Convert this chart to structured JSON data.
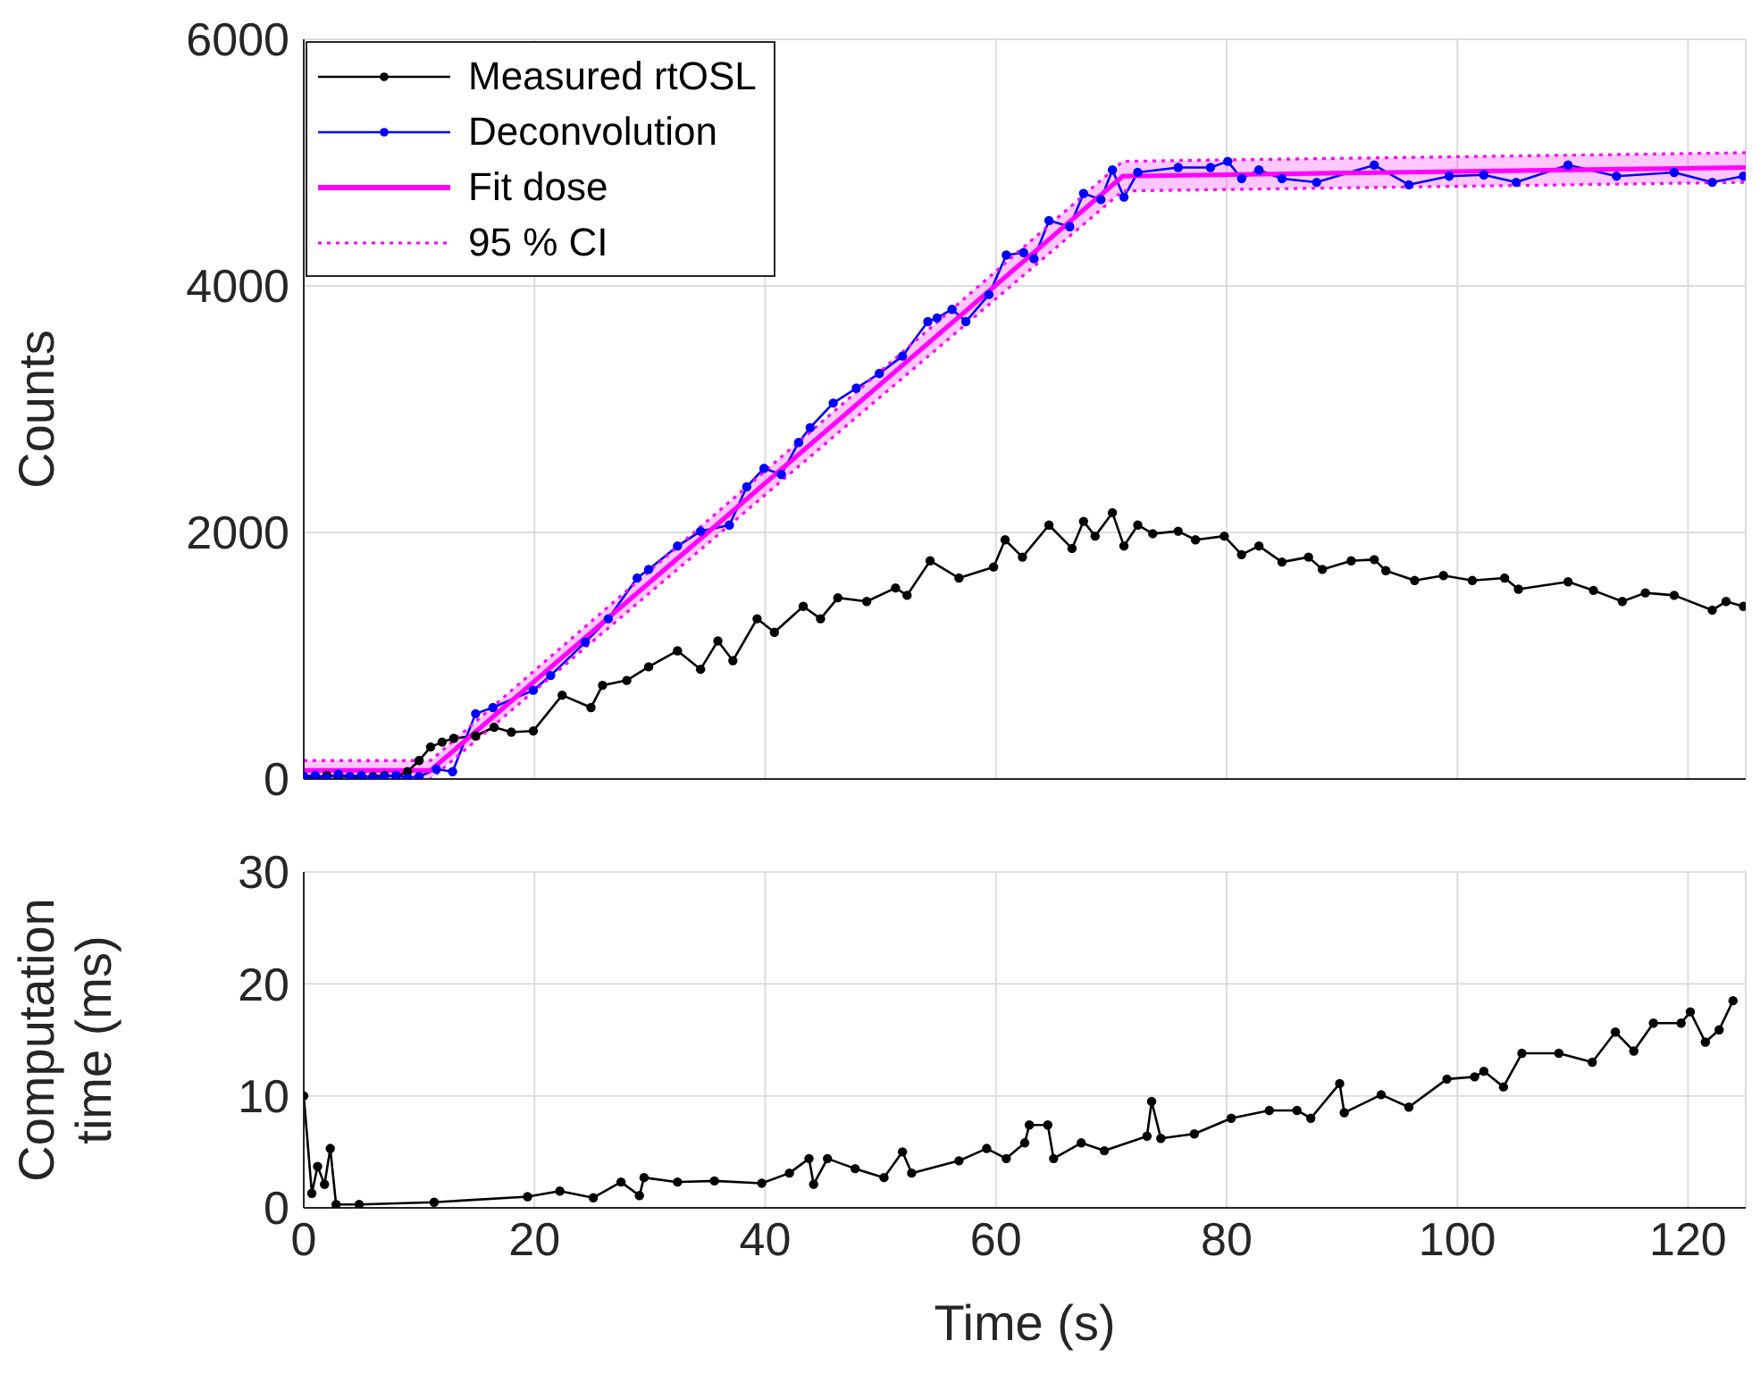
{
  "chart_data": [
    {
      "type": "line",
      "ylabel": "Counts",
      "xlim": [
        0,
        125
      ],
      "xticks": [
        0,
        20,
        40,
        60,
        80,
        100,
        120
      ],
      "ylim": [
        0,
        6000
      ],
      "yticks": [
        0,
        2000,
        4000,
        6000
      ],
      "tick_labels": "y",
      "grid": true,
      "legend": "top left",
      "marker": "circle",
      "line_style": "solid",
      "series": [
        {
          "name": "Measured rtOSL",
          "color": "#000000",
          "x": [
            0,
            1,
            2,
            3,
            4,
            5,
            6,
            7,
            8,
            9,
            10,
            11,
            12,
            13,
            14.9,
            16.5,
            18,
            19.9,
            22.4,
            24.9,
            25.9,
            28,
            29.9,
            32.4,
            34.4,
            35.9,
            37.2,
            39.3,
            40.8,
            43.3,
            44.8,
            46.3,
            48.8,
            51.3,
            52.3,
            54.3,
            56.8,
            59.8,
            60.8,
            62.3,
            64.6,
            66.6,
            67.6,
            68.6,
            70.1,
            71.1,
            72.3,
            73.6,
            75.8,
            77.3,
            79.8,
            81.3,
            82.8,
            84.8,
            87.1,
            88.3,
            90.8,
            92.8,
            93.8,
            96.3,
            98.8,
            101.3,
            104.1,
            105.3,
            109.6,
            111.8,
            114.3,
            116.3,
            118.8,
            122.1,
            123.3,
            124.8
          ],
          "values": [
            20,
            10,
            30,
            20,
            20,
            10,
            20,
            30,
            20,
            60,
            150,
            260,
            300,
            330,
            350,
            420,
            380,
            390,
            680,
            580,
            760,
            800,
            910,
            1040,
            890,
            1120,
            960,
            1300,
            1190,
            1400,
            1300,
            1470,
            1440,
            1550,
            1490,
            1770,
            1630,
            1720,
            1940,
            1800,
            2060,
            1870,
            2090,
            1970,
            2160,
            1890,
            2060,
            1990,
            2010,
            1940,
            1970,
            1820,
            1890,
            1760,
            1800,
            1700,
            1770,
            1780,
            1690,
            1610,
            1650,
            1610,
            1630,
            1540,
            1600,
            1530,
            1440,
            1510,
            1490,
            1370,
            1440,
            1400
          ]
        },
        {
          "name": "Deconvolution",
          "color": "#0000ff",
          "x": [
            0,
            1,
            2,
            3,
            4,
            5,
            6,
            7,
            8,
            9,
            10,
            11.5,
            12.9,
            14.9,
            16.4,
            19.9,
            21.4,
            24.4,
            26.4,
            28.9,
            29.9,
            32.4,
            34.4,
            36.9,
            38.4,
            39.9,
            41.4,
            42.9,
            43.9,
            45.9,
            47.9,
            49.9,
            51.9,
            54.1,
            54.9,
            56.2,
            57.4,
            59.4,
            60.9,
            62.4,
            63.3,
            64.6,
            66.4,
            67.6,
            69.1,
            70.1,
            71.1,
            72.3,
            75.8,
            78.6,
            80.1,
            81.3,
            82.8,
            84.8,
            87.8,
            92.8,
            95.8,
            99.3,
            102.3,
            105.1,
            109.6,
            113.8,
            118.8,
            122.1,
            124.8
          ],
          "values": [
            20,
            30,
            10,
            40,
            20,
            30,
            10,
            20,
            30,
            10,
            20,
            80,
            60,
            530,
            580,
            720,
            840,
            1110,
            1300,
            1630,
            1700,
            1890,
            2010,
            2060,
            2370,
            2520,
            2470,
            2730,
            2850,
            3050,
            3170,
            3290,
            3430,
            3710,
            3740,
            3810,
            3710,
            3930,
            4250,
            4270,
            4220,
            4530,
            4480,
            4750,
            4700,
            4940,
            4720,
            4920,
            4960,
            4960,
            5010,
            4870,
            4940,
            4870,
            4840,
            4980,
            4820,
            4890,
            4900,
            4840,
            4980,
            4890,
            4920,
            4840,
            4890
          ]
        },
        {
          "name": "Fit dose",
          "color": "#ff00ff",
          "marker": "none",
          "x": [
            0,
            11,
            71,
            125
          ],
          "values": [
            70,
            70,
            4890,
            4960
          ],
          "lower": [
            0,
            0,
            4770,
            4840
          ],
          "upper": [
            150,
            150,
            5010,
            5080
          ]
        },
        {
          "name": "95 % CI",
          "color": "#ff00ff",
          "marker": "none",
          "line_style": "dotted",
          "x": [
            0,
            11,
            71,
            125
          ],
          "values": [
            150,
            150,
            5010,
            5080
          ]
        },
        {
          "color": "#ff00ff",
          "marker": "none",
          "line_style": "dotted",
          "x": [
            0,
            11,
            71,
            125
          ],
          "values": [
            0,
            0,
            4770,
            4840
          ]
        }
      ]
    },
    {
      "type": "line",
      "xlabel": "Time (s)",
      "ylabel": "Computation time (ms)",
      "xlim": [
        0,
        125
      ],
      "xticks": [
        0,
        20,
        40,
        60,
        80,
        100,
        120
      ],
      "ylim": [
        0,
        30
      ],
      "yticks": [
        0,
        10,
        20,
        30
      ],
      "grid": true,
      "marker": "circle",
      "line_style": "solid",
      "series": [
        {
          "color": "#000000",
          "x": [
            0,
            0.7,
            1.2,
            1.8,
            2.3,
            2.8,
            4.8,
            11.3,
            19.4,
            22.2,
            25.1,
            27.5,
            29.1,
            29.5,
            32.4,
            35.6,
            39.7,
            42.1,
            43.8,
            44.2,
            45.4,
            47.8,
            50.3,
            51.9,
            52.7,
            56.8,
            59.2,
            60.9,
            62.5,
            62.9,
            64.5,
            65,
            67.4,
            69.4,
            73.1,
            73.5,
            74.3,
            77.2,
            80.4,
            83.7,
            86.1,
            87.3,
            89.8,
            90.2,
            93.4,
            95.8,
            99.1,
            101.5,
            102.3,
            104,
            105.6,
            108.8,
            111.7,
            113.7,
            115.3,
            117,
            119.4,
            120.2,
            121.5,
            122.7,
            123.9
          ],
          "values": [
            10,
            1.3,
            3.7,
            2.1,
            5.3,
            0.3,
            0.3,
            0.5,
            1,
            1.5,
            0.9,
            2.3,
            1.1,
            2.7,
            2.3,
            2.4,
            2.2,
            3.1,
            4.4,
            2.1,
            4.4,
            3.5,
            2.7,
            5,
            3.1,
            4.2,
            5.3,
            4.4,
            5.8,
            7.4,
            7.4,
            4.4,
            5.8,
            5.1,
            6.4,
            9.5,
            6.2,
            6.6,
            8,
            8.7,
            8.7,
            8,
            11.1,
            8.5,
            10.1,
            9,
            11.5,
            11.7,
            12.2,
            10.8,
            13.8,
            13.8,
            13,
            15.7,
            14,
            16.5,
            16.5,
            17.5,
            14.8,
            15.9,
            18.5
          ]
        }
      ]
    }
  ]
}
